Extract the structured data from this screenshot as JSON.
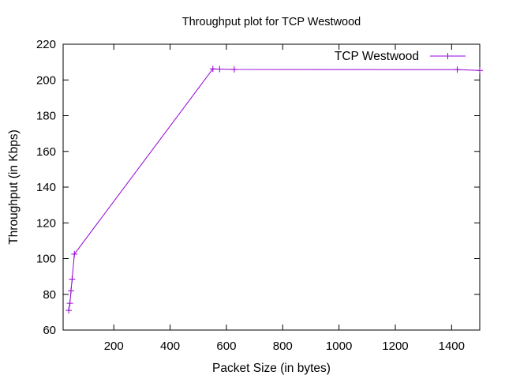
{
  "chart_data": {
    "type": "line",
    "title": "Throughput plot for TCP Westwood",
    "xlabel": "Packet Size (in bytes)",
    "ylabel": "Throughput (in Kbps)",
    "xlim": [
      20,
      1500
    ],
    "ylim": [
      60,
      220
    ],
    "xticks": [
      200,
      400,
      600,
      800,
      1000,
      1200,
      1400
    ],
    "yticks": [
      60,
      80,
      100,
      120,
      140,
      160,
      180,
      200,
      220
    ],
    "grid": false,
    "legend": "top-right",
    "colors": {
      "series": "#9400d3",
      "axis": "#000000"
    },
    "series": [
      {
        "name": "TCP Westwood",
        "points": [
          {
            "x": 40,
            "y": 71
          },
          {
            "x": 44,
            "y": 75
          },
          {
            "x": 48,
            "y": 82
          },
          {
            "x": 52,
            "y": 88.5
          },
          {
            "x": 60,
            "y": 102.5
          },
          {
            "x": 552,
            "y": 206.2
          },
          {
            "x": 576,
            "y": 206.1
          },
          {
            "x": 628,
            "y": 205.9
          },
          {
            "x": 1420,
            "y": 205.8
          },
          {
            "x": 1500,
            "y": 205.3
          }
        ]
      }
    ]
  }
}
